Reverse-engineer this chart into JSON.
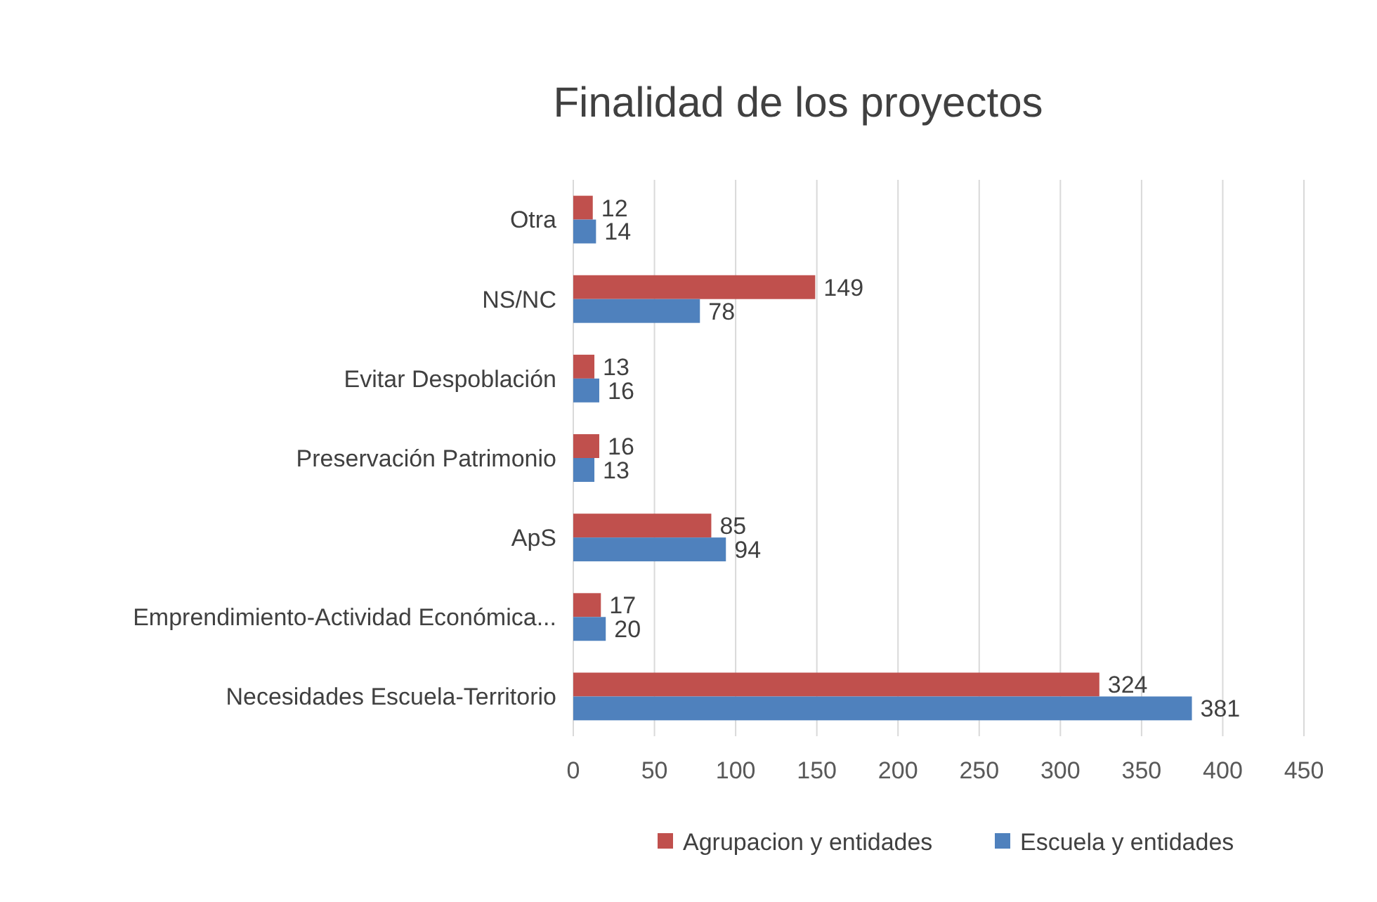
{
  "chart_data": {
    "type": "bar",
    "orientation": "horizontal",
    "title": "Finalidad de los proyectos",
    "categories": [
      "Otra",
      "NS/NC",
      "Evitar Despoblación",
      "Preservación Patrimonio",
      "ApS",
      "Emprendimiento-Actividad Económica...",
      "Necesidades Escuela-Territorio"
    ],
    "series": [
      {
        "name": "Agrupacion y entidades",
        "color": "#c0504d",
        "values": [
          12,
          149,
          13,
          16,
          85,
          17,
          324
        ]
      },
      {
        "name": "Escuela y entidades",
        "color": "#4f81bd",
        "values": [
          14,
          78,
          16,
          13,
          94,
          20,
          381
        ]
      }
    ],
    "xlim": [
      0,
      450
    ],
    "xticks": [
      0,
      50,
      100,
      150,
      200,
      250,
      300,
      350,
      400,
      450
    ],
    "grid": "x",
    "legend": "bottom",
    "data_labels": true
  }
}
